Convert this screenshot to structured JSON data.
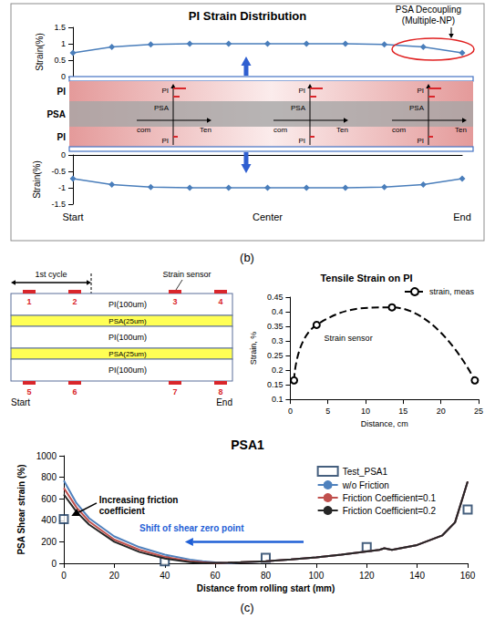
{
  "chart_data": [
    {
      "type": "line",
      "title": "PI Strain Distribution",
      "y_label": "Strain(%)",
      "categories": [
        null,
        null,
        null,
        null,
        null,
        null,
        null,
        null,
        null,
        null,
        null
      ],
      "values": [
        0.72,
        0.9,
        0.98,
        1.0,
        1.0,
        1.0,
        1.0,
        1.0,
        0.98,
        0.9,
        0.72
      ],
      "color": "#4a7ebb",
      "marker": "diamond",
      "ylim": [
        0,
        1.5
      ],
      "yticks": [
        0,
        0.5,
        1,
        1.5
      ],
      "grid": false,
      "tick_labels": "y",
      "annotations": [
        "PSA Decoupling (Multiple-NP)"
      ]
    },
    {
      "type": "line",
      "y_label": "Strain(%)",
      "categories": [
        "Start",
        null,
        null,
        null,
        null,
        "Center",
        null,
        null,
        null,
        null,
        "End"
      ],
      "values": [
        -0.72,
        -0.9,
        -0.98,
        -1.0,
        -1.0,
        -1.0,
        -1.0,
        -1.0,
        -0.98,
        -0.9,
        -0.72
      ],
      "color": "#4a7ebb",
      "marker": "diamond",
      "ylim": [
        -1.5,
        0
      ],
      "yticks": [
        -1.5,
        -1,
        -0.5,
        0
      ],
      "grid": false
    },
    {
      "type": "line",
      "title": "Tensile Strain on PI",
      "x_label": "Distance, cm",
      "y_label": "Strain, %",
      "series": [
        {
          "name": "strain, meas",
          "color": "#000000",
          "marker": "open_circle",
          "line_style": "dashed",
          "x": [
            0.5,
            3.5,
            13.5,
            24.5
          ],
          "values": [
            0.165,
            0.355,
            0.415,
            0.165
          ]
        }
      ],
      "xlim": [
        0,
        25
      ],
      "xticks": [
        0,
        5,
        10,
        15,
        20,
        25
      ],
      "ylim": [
        0.1,
        0.45
      ],
      "yticks": [
        0.1,
        0.15,
        0.2,
        0.25,
        0.3,
        0.35,
        0.4,
        0.45
      ],
      "grid": false,
      "legend": "upper right",
      "annotations": [
        "Strain sensor"
      ]
    },
    {
      "type": "line",
      "title": "PSA1",
      "x_label": "Distance from rolling start (mm)",
      "y_label": "PSA Shear strain (%)",
      "x": [
        0,
        5,
        10,
        20,
        30,
        40,
        50,
        55,
        60,
        65,
        70,
        80,
        90,
        100,
        110,
        120,
        125,
        127,
        130,
        140,
        150,
        155,
        160
      ],
      "series": [
        {
          "name": "Test_PSA1",
          "type": "scatter",
          "marker": "open_square",
          "color": "#17375e",
          "x": [
            0,
            40,
            80,
            120,
            160
          ],
          "values": [
            410,
            20,
            50,
            150,
            500
          ]
        },
        {
          "name": "w/o Friction",
          "color": "#4f81bd",
          "values": [
            770,
            560,
            420,
            250,
            150,
            80,
            35,
            20,
            8,
            2,
            8,
            20,
            35,
            55,
            80,
            110,
            125,
            140,
            125,
            170,
            260,
            380,
            760
          ]
        },
        {
          "name": "Friction Coefficient=0.1",
          "color": "#c0504d",
          "values": [
            700,
            520,
            390,
            220,
            125,
            60,
            20,
            10,
            3,
            6,
            10,
            20,
            35,
            55,
            80,
            110,
            125,
            140,
            125,
            170,
            260,
            380,
            760
          ]
        },
        {
          "name": "Friction Coefficient=0.2",
          "color": "#262626",
          "values": [
            640,
            480,
            360,
            200,
            105,
            45,
            10,
            2,
            4,
            6,
            10,
            20,
            35,
            55,
            80,
            110,
            125,
            140,
            125,
            170,
            260,
            380,
            760
          ]
        }
      ],
      "xlim": [
        0,
        160
      ],
      "xticks": [
        0,
        20,
        40,
        60,
        80,
        100,
        120,
        140,
        160
      ],
      "ylim": [
        0,
        1000
      ],
      "yticks": [
        0,
        200,
        400,
        600,
        800,
        1000
      ],
      "grid": false,
      "legend": "upper right",
      "annotations": [
        "Increasing friction coefficient",
        "Shift of shear zero point"
      ]
    }
  ],
  "figure": {
    "captions": [
      "(b)",
      "(c)"
    ],
    "laminate": {
      "layers": [
        "PI",
        "PSA",
        "PI"
      ],
      "insets": [
        {
          "layers": [
            "PI",
            "PSA",
            "PI"
          ],
          "compression": "com",
          "tension": "Ten"
        },
        {
          "layers": [
            "PI",
            "PSA",
            "PI"
          ],
          "compression": "com",
          "tension": "Ten"
        },
        {
          "layers": [
            "PI",
            "PSA",
            "PI"
          ],
          "compression": "com",
          "tension": "Ten"
        }
      ]
    },
    "specimen": {
      "cycle": "1st cycle",
      "sensor": "Strain sensor",
      "layers": [
        "PI(100um)",
        "PSA(25um)",
        "PI(100um)",
        "PSA(25um)",
        "PI(100um)"
      ],
      "top_sensors": [
        "1",
        "2",
        "3",
        "4"
      ],
      "bottom_sensors": [
        "5",
        "6",
        "7",
        "8"
      ],
      "start": "Start",
      "end": "End"
    }
  }
}
